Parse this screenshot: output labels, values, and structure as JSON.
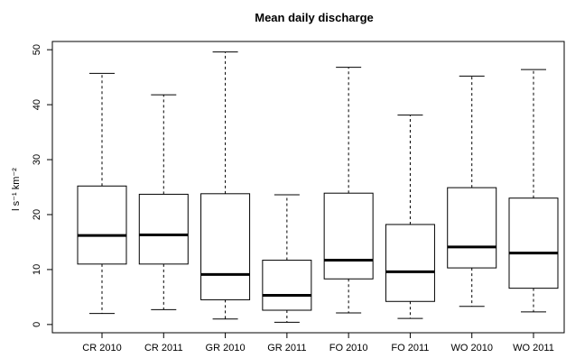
{
  "chart_data": {
    "type": "boxplot",
    "title": "Mean daily discharge",
    "xlabel": "",
    "ylabel": "l s⁻¹ km⁻²",
    "ylim": [
      -1.5,
      51.5
    ],
    "yticks": [
      0,
      10,
      20,
      30,
      40,
      50
    ],
    "categories": [
      "CR 2010",
      "CR 2011",
      "GR 2010",
      "GR 2011",
      "FO 2010",
      "FO 2011",
      "WO 2010",
      "WO 2011"
    ],
    "boxes": [
      {
        "min": 2.0,
        "q1": 11.0,
        "median": 16.2,
        "q3": 25.2,
        "max": 45.7
      },
      {
        "min": 2.7,
        "q1": 11.0,
        "median": 16.3,
        "q3": 23.7,
        "max": 41.8
      },
      {
        "min": 1.0,
        "q1": 4.5,
        "median": 9.1,
        "q3": 23.8,
        "max": 49.6
      },
      {
        "min": 0.4,
        "q1": 2.6,
        "median": 5.3,
        "q3": 11.7,
        "max": 23.6
      },
      {
        "min": 2.1,
        "q1": 8.3,
        "median": 11.7,
        "q3": 23.9,
        "max": 46.8
      },
      {
        "min": 1.1,
        "q1": 4.2,
        "median": 9.6,
        "q3": 18.2,
        "max": 38.1
      },
      {
        "min": 3.3,
        "q1": 10.3,
        "median": 14.1,
        "q3": 24.9,
        "max": 45.2
      },
      {
        "min": 2.3,
        "q1": 6.6,
        "median": 13.0,
        "q3": 23.0,
        "max": 46.4
      }
    ],
    "grid": false,
    "legend": "none"
  }
}
